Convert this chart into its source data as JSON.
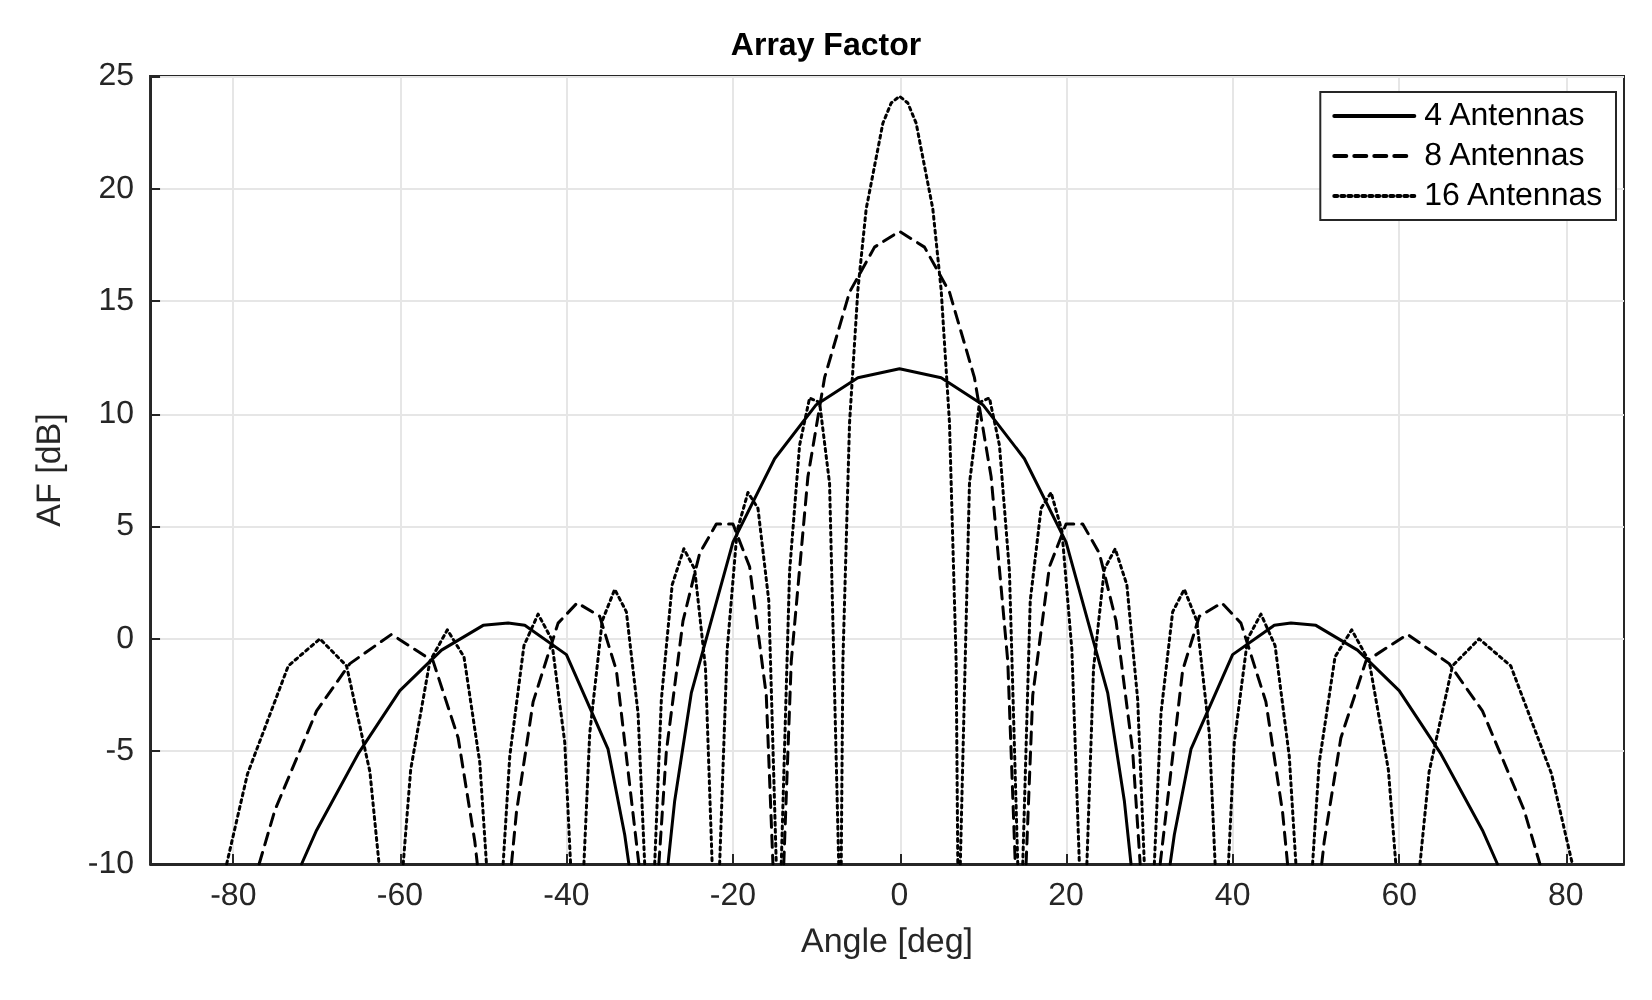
{
  "chart_data": {
    "type": "line",
    "title": "Array Factor",
    "xlabel": "Angle [deg]",
    "ylabel": "AF [dB]",
    "xlim": [
      -90,
      87
    ],
    "xticks": [
      -80,
      -60,
      -40,
      -20,
      0,
      20,
      40,
      60,
      80
    ],
    "ylim": [
      -10,
      25
    ],
    "yticks": [
      -10,
      -5,
      0,
      5,
      10,
      15,
      20,
      25
    ],
    "grid": true,
    "legend": "top right",
    "series": [
      {
        "name": "4 Antennas",
        "color": "#000000",
        "line_style": "solid",
        "x": [
          -71.8,
          -70,
          -65,
          -60,
          -55,
          -50,
          -47,
          -45,
          -40,
          -35,
          -33,
          -32.5,
          -30,
          -27.8,
          -27,
          -25,
          -20,
          -15,
          -10,
          -5,
          0,
          5,
          10,
          15,
          20,
          25,
          27,
          27.8,
          30,
          32.5,
          33,
          35,
          40,
          45,
          47,
          50,
          55,
          60,
          65,
          70,
          71.8
        ],
        "values": [
          -10,
          -8.5,
          -5.1,
          -2.3,
          -0.5,
          0.6,
          0.7,
          0.6,
          -0.7,
          -4.9,
          -8.7,
          -10,
          null,
          -10,
          -7.2,
          -2.4,
          4.3,
          8.0,
          10.4,
          11.6,
          12.0,
          11.6,
          10.4,
          8.0,
          4.3,
          -2.4,
          -7.2,
          -10,
          null,
          -10,
          -8.7,
          -4.9,
          -0.7,
          0.6,
          0.7,
          0.6,
          -0.5,
          -2.3,
          -5.1,
          -8.5,
          -10
        ]
      },
      {
        "name": "8 Antennas",
        "color": "#000000",
        "line_style": "dashed",
        "x": [
          -76.9,
          -75,
          -70,
          -66,
          -61,
          -56,
          -53,
          -51,
          -50.7,
          -48.6,
          -46.6,
          -46,
          -44,
          -41,
          -38.7,
          -36,
          -34,
          -31.3,
          -30,
          -28.9,
          -28,
          -26,
          -24,
          -22,
          -20,
          -18,
          -16,
          -15.2,
          -14.5,
          -13.9,
          -13,
          -11,
          -9,
          -6,
          -3,
          0,
          3,
          6,
          9,
          11,
          13,
          13.9,
          14.5,
          15.2,
          16,
          18,
          20,
          22,
          24,
          26,
          28,
          28.9,
          30,
          31.3,
          34,
          36,
          38.7,
          41,
          44,
          46,
          46.6,
          48.6,
          50.7,
          51,
          53,
          56,
          61,
          66,
          70,
          75,
          76.9
        ],
        "values": [
          -10,
          -7.6,
          -3.2,
          -1.1,
          0.2,
          -1.0,
          -4.4,
          -9.0,
          -10,
          null,
          -10,
          -7.7,
          -2.8,
          0.7,
          1.6,
          1.0,
          -1.4,
          -10,
          null,
          -10,
          -5.0,
          0.8,
          3.8,
          5.1,
          5.1,
          3.2,
          -2.5,
          -10,
          null,
          -10,
          -1.0,
          7.2,
          11.6,
          15.4,
          17.4,
          18.1,
          17.4,
          15.4,
          11.6,
          7.2,
          -1.0,
          -10,
          null,
          -10,
          -2.5,
          3.2,
          5.1,
          5.1,
          3.8,
          0.8,
          -5.0,
          -10,
          null,
          -10,
          -1.4,
          1.0,
          1.6,
          0.7,
          -2.8,
          -7.7,
          -10,
          null,
          -10,
          -9.0,
          -4.4,
          -1.0,
          0.2,
          -1.1,
          -3.2,
          -7.6,
          -10
        ]
      },
      {
        "name": "16 Antennas",
        "color": "#000000",
        "line_style": "dotted",
        "x": [
          -80.8,
          -78.3,
          -73.4,
          -69.6,
          -66.4,
          -63.6,
          -62.5,
          -61.0,
          -59.6,
          -58.7,
          -56.4,
          -54.3,
          -52.3,
          -50.4,
          -49.6,
          -48.6,
          -47.6,
          -46.8,
          -45.1,
          -43.4,
          -41.8,
          -40.2,
          -39.5,
          -38.7,
          -37.9,
          -37.2,
          -35.7,
          -34.2,
          -32.8,
          -31.4,
          -30.6,
          -30,
          -29.4,
          -28.6,
          -27.3,
          -25.9,
          -24.6,
          -23.3,
          -22.5,
          -22.0,
          -21.6,
          -20.7,
          -19.5,
          -18.2,
          -17.0,
          -15.7,
          -14.8,
          -14.5,
          -14.2,
          -13.2,
          -12.0,
          -10.8,
          -9.6,
          -8.4,
          -7.3,
          -7.2,
          -7.0,
          -6.8,
          -6,
          -5,
          -4,
          -2,
          -1,
          0,
          1,
          2,
          4,
          5,
          6,
          6.8,
          7.0,
          7.2,
          7.3,
          8.4,
          9.6,
          10.8,
          12.0,
          13.2,
          14.2,
          14.5,
          14.8,
          15.7,
          17.0,
          18.2,
          19.5,
          20.7,
          21.6,
          22.0,
          22.5,
          23.3,
          24.6,
          25.9,
          27.3,
          28.6,
          29.4,
          30,
          30.6,
          31.4,
          32.8,
          34.2,
          35.7,
          37.2,
          37.9,
          38.7,
          39.5,
          40.2,
          41.8,
          43.4,
          45.1,
          46.8,
          47.6,
          48.6,
          49.6,
          50.4,
          52.3,
          54.3,
          56.4,
          58.7,
          59.6,
          61.0,
          62.5,
          63.6,
          66.4,
          69.6,
          73.4,
          78.3,
          80.8
        ],
        "values": [
          -10,
          -6.0,
          -1.2,
          0.0,
          -1.2,
          -5.9,
          -10,
          null,
          -10,
          -5.8,
          -1.0,
          0.4,
          -0.8,
          -5.5,
          -10,
          null,
          -10,
          -5.2,
          -0.3,
          1.1,
          0.0,
          -4.6,
          -10,
          null,
          -10,
          -4.2,
          0.8,
          2.2,
          1.2,
          -3.3,
          -10,
          null,
          -10,
          -2.7,
          2.4,
          4.0,
          3.1,
          -1.3,
          -10,
          null,
          -10,
          -0.5,
          4.8,
          6.5,
          5.8,
          1.7,
          -10,
          null,
          -10,
          3.0,
          8.6,
          10.7,
          10.5,
          6.9,
          -10,
          null,
          -10,
          -1.0,
          9.6,
          15.5,
          19.1,
          22.9,
          23.8,
          24.1,
          23.8,
          22.9,
          19.1,
          15.5,
          9.6,
          -1.0,
          -10,
          null,
          -10,
          6.9,
          10.5,
          10.7,
          8.6,
          3.0,
          -10,
          null,
          -10,
          1.7,
          5.8,
          6.5,
          4.8,
          -0.5,
          -10,
          null,
          -10,
          -1.3,
          3.1,
          4.0,
          2.4,
          -2.7,
          -10,
          null,
          -10,
          -3.3,
          1.2,
          2.2,
          0.8,
          -4.2,
          -10,
          null,
          -10,
          -4.6,
          0.0,
          1.1,
          -0.3,
          -5.2,
          -10,
          null,
          -10,
          -5.5,
          -0.8,
          0.4,
          -1.0,
          -5.8,
          -10,
          null,
          -10,
          -5.9,
          -1.2,
          0.0,
          -1.2,
          -6.0,
          -10
        ]
      }
    ]
  }
}
